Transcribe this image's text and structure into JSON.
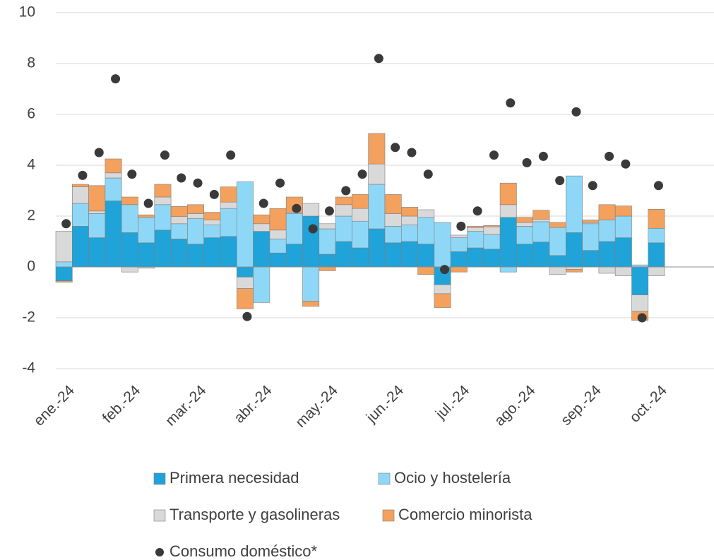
{
  "chart_data": {
    "type": "stacked_bar",
    "categories": [
      "ene.-24",
      null,
      null,
      null,
      "feb.-24",
      null,
      null,
      null,
      "mar.-24",
      null,
      null,
      null,
      "abr.-24",
      null,
      null,
      null,
      "may.-24",
      null,
      null,
      null,
      "jun.-24",
      null,
      null,
      null,
      "jul.-24",
      null,
      null,
      null,
      "ago.-24",
      null,
      null,
      null,
      "sep.-24",
      null,
      null,
      null,
      "oct.-24",
      null,
      null,
      null
    ],
    "series": [
      {
        "name": "Primera necesidad",
        "color": "#1fa3d8",
        "values": [
          -0.55,
          1.6,
          1.15,
          2.6,
          1.35,
          0.95,
          1.45,
          1.1,
          0.9,
          1.15,
          1.2,
          -0.4,
          1.4,
          0.55,
          0.9,
          2.0,
          0.5,
          1.0,
          0.75,
          1.5,
          0.95,
          1.0,
          0.9,
          -0.7,
          0.6,
          0.75,
          0.7,
          1.95,
          0.9,
          0.98,
          0.45,
          1.35,
          0.65,
          1.0,
          1.15,
          -1.1,
          0.95,
          null,
          null,
          null
        ]
      },
      {
        "name": "Ocio y hostelería",
        "color": "#8fd7f7",
        "values": [
          0.2,
          0.9,
          0.95,
          0.9,
          1.1,
          1.0,
          1.0,
          0.6,
          1.0,
          0.5,
          1.1,
          3.35,
          -1.4,
          0.55,
          1.2,
          -1.35,
          1.0,
          1.0,
          1.05,
          1.75,
          0.65,
          0.65,
          1.05,
          1.75,
          0.55,
          0.65,
          0.58,
          -0.2,
          0.7,
          0.8,
          1.1,
          2.23,
          1.05,
          0.85,
          0.85,
          0.08,
          0.57,
          null,
          null,
          null
        ]
      },
      {
        "name": "Transporte y gasolineras",
        "color": "#d9d9d9",
        "values": [
          1.2,
          0.65,
          0.1,
          0.2,
          -0.2,
          -0.05,
          0.3,
          0.28,
          0.2,
          0.2,
          0.25,
          -0.45,
          0.3,
          0.35,
          0.05,
          0.5,
          0.2,
          0.45,
          0.5,
          0.8,
          0.5,
          0.35,
          0.3,
          -0.35,
          0.1,
          0.15,
          0.3,
          0.5,
          0.15,
          0.1,
          -0.3,
          -0.1,
          0.05,
          -0.25,
          -0.35,
          -0.65,
          -0.35,
          null,
          null,
          null
        ]
      },
      {
        "name": "Comercio minorista",
        "color": "#f4a15d",
        "values": [
          -0.05,
          0.1,
          1.0,
          0.55,
          0.3,
          0.1,
          0.5,
          0.4,
          0.35,
          0.3,
          0.6,
          -0.8,
          0.35,
          0.85,
          0.6,
          -0.2,
          -0.15,
          0.3,
          0.55,
          1.2,
          0.75,
          0.35,
          -0.3,
          -0.55,
          -0.2,
          0.05,
          0.05,
          0.85,
          0.2,
          0.35,
          0.2,
          -0.1,
          0.1,
          0.6,
          0.4,
          -0.35,
          0.75,
          null,
          null,
          null
        ]
      }
    ],
    "points": {
      "name": "Consumo doméstico*",
      "color": "#3a3a3a",
      "values": [
        1.7,
        3.6,
        4.5,
        7.4,
        3.65,
        2.5,
        4.4,
        3.5,
        3.3,
        2.85,
        4.4,
        -1.95,
        2.5,
        3.3,
        2.3,
        1.5,
        2.2,
        3.0,
        3.65,
        8.2,
        4.7,
        4.5,
        3.65,
        -0.1,
        1.6,
        2.2,
        4.4,
        6.45,
        4.1,
        4.35,
        3.4,
        6.1,
        3.2,
        4.35,
        4.05,
        -2.0,
        3.2,
        null,
        null,
        null
      ]
    },
    "ylim": [
      -4,
      10
    ],
    "yticks": [
      -4,
      -2,
      0,
      2,
      4,
      6,
      8,
      10
    ],
    "grid": true
  }
}
